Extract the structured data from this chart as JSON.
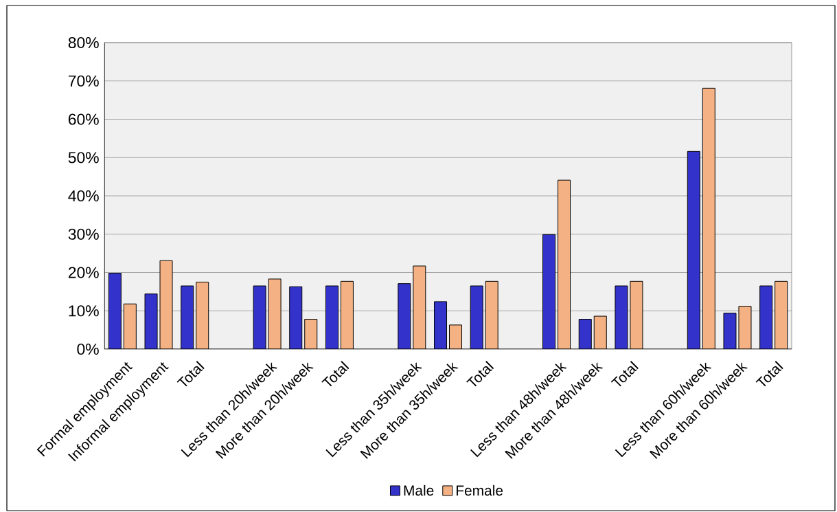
{
  "chart_data": {
    "type": "bar",
    "categories": [
      "Formal employment",
      "Informal employment",
      "Total",
      null,
      "Less than 20h/week",
      "More than 20h/week",
      "Total",
      null,
      "Less than 35h/week",
      "More than 35h/week",
      "Total",
      null,
      "Less than 48h/week",
      "More than 48h/week",
      "Total",
      null,
      "Less than 60h/week",
      "More than 60h/week",
      "Total"
    ],
    "series": [
      {
        "name": "Male",
        "color": "#3333cc",
        "values": [
          19.8,
          14.4,
          16.5,
          null,
          16.5,
          16.3,
          16.5,
          null,
          17.1,
          12.4,
          16.5,
          null,
          29.9,
          7.8,
          16.5,
          null,
          51.6,
          9.4,
          16.5
        ]
      },
      {
        "name": "Female",
        "color": "#f4b183",
        "values": [
          11.8,
          23.1,
          17.5,
          null,
          18.3,
          7.8,
          17.7,
          null,
          21.7,
          6.3,
          17.7,
          null,
          44.1,
          8.6,
          17.7,
          null,
          68.1,
          11.2,
          17.7
        ]
      }
    ],
    "ylim": [
      0,
      80
    ],
    "yticks": [
      {
        "value": 0,
        "label": "0%"
      },
      {
        "value": 10,
        "label": "10%"
      },
      {
        "value": 20,
        "label": "20%"
      },
      {
        "value": 30,
        "label": "30%"
      },
      {
        "value": 40,
        "label": "40%"
      },
      {
        "value": 50,
        "label": "50%"
      },
      {
        "value": 60,
        "label": "60%"
      },
      {
        "value": 70,
        "label": "70%"
      },
      {
        "value": 80,
        "label": "80%"
      }
    ],
    "grid": "y",
    "legend": "bottom"
  }
}
